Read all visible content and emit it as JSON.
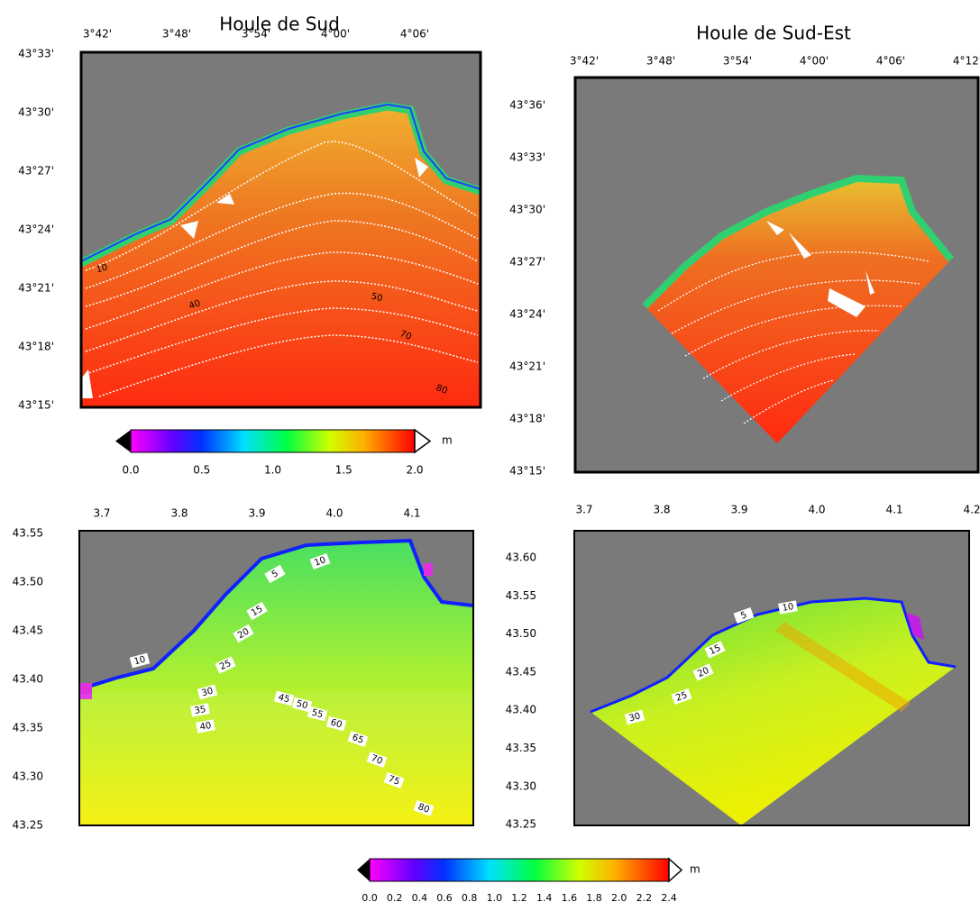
{
  "panels": [
    {
      "title": "Houle de Sud",
      "xticks": [
        "3°42'",
        "3°48'",
        "3°54'",
        "4°00'",
        "4°06'"
      ],
      "yticks": [
        "43°33'",
        "43°30'",
        "43°27'",
        "43°24'",
        "43°21'",
        "43°18'",
        "43°15'"
      ],
      "contour_labels": [
        "10",
        "40",
        "50",
        "70",
        "80"
      ]
    },
    {
      "title": "Houle de Sud-Est",
      "xticks": [
        "3°42'",
        "3°48'",
        "3°54'",
        "4°00'",
        "4°06'",
        "4°12'"
      ],
      "yticks": [
        "43°36'",
        "43°33'",
        "43°30'",
        "43°27'",
        "43°24'",
        "43°21'",
        "43°18'",
        "43°15'"
      ],
      "contour_labels": []
    },
    {
      "xticks": [
        "3.7",
        "3.8",
        "3.9",
        "4.0",
        "4.1"
      ],
      "yticks": [
        "43.55",
        "43.50",
        "43.45",
        "43.40",
        "43.35",
        "43.30",
        "43.25"
      ],
      "contour_labels": [
        "5",
        "10",
        "15",
        "20",
        "25",
        "30",
        "35",
        "40",
        "10",
        "45",
        "50",
        "55",
        "60",
        "65",
        "70",
        "75",
        "80"
      ]
    },
    {
      "xticks": [
        "3.7",
        "3.8",
        "3.9",
        "4.0",
        "4.1",
        "4.2"
      ],
      "yticks": [
        "43.60",
        "43.55",
        "43.50",
        "43.45",
        "43.40",
        "43.35",
        "43.30",
        "43.25"
      ],
      "contour_labels": [
        "5",
        "10",
        "15",
        "20",
        "25",
        "30"
      ]
    }
  ],
  "colorbars": [
    {
      "ticks": [
        "0.0",
        "0.5",
        "1.0",
        "1.5",
        "2.0"
      ],
      "unit": "m"
    },
    {
      "ticks": [
        "0.0",
        "0.2",
        "0.4",
        "0.6",
        "0.8",
        "1.0",
        "1.2",
        "1.4",
        "1.6",
        "1.8",
        "2.0",
        "2.2",
        "2.4"
      ],
      "unit": "m"
    }
  ]
}
